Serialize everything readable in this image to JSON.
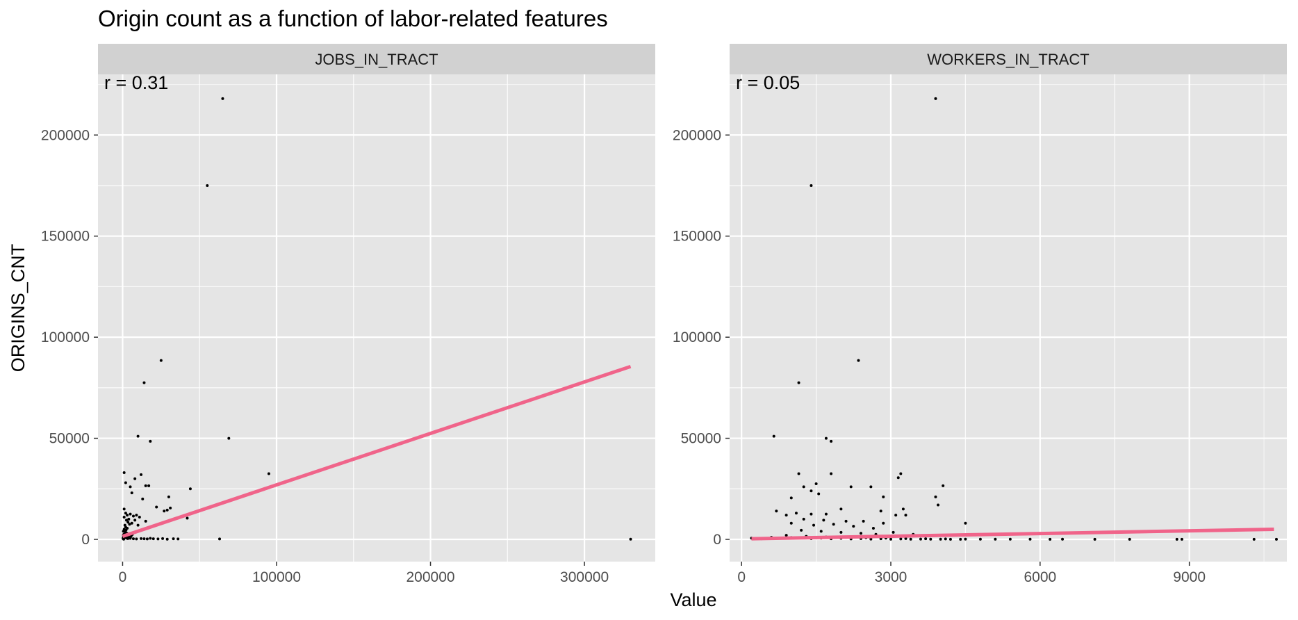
{
  "chart_data": {
    "type": "scatter",
    "title": "Origin count as a function of labor-related features",
    "xlabel": "Value",
    "ylabel": "ORIGINS_CNT",
    "grid": true,
    "legend": "none",
    "colors": {
      "panel_bg": "#e5e5e5",
      "strip_bg": "#d1d1d1",
      "grid": "#ffffff",
      "points": "#000000",
      "fit_line": "#f0648a"
    },
    "panels": [
      {
        "strip": "JOBS_IN_TRACT",
        "annotation": "r = 0.31",
        "xlim": [
          -16000,
          346000
        ],
        "ylim": [
          -11000,
          230000
        ],
        "x_ticks": [
          0,
          100000,
          200000,
          300000
        ],
        "x_tick_labels": [
          "0",
          "100000",
          "200000",
          "300000"
        ],
        "y_ticks": [
          0,
          50000,
          100000,
          150000,
          200000
        ],
        "y_tick_labels": [
          "0",
          "50000",
          "100000",
          "150000",
          "200000"
        ],
        "fit_line": [
          [
            0,
            1500
          ],
          [
            330000,
            85500
          ]
        ],
        "points": [
          [
            65000,
            218000
          ],
          [
            55000,
            175000
          ],
          [
            25000,
            88500
          ],
          [
            14000,
            77500
          ],
          [
            10000,
            51000
          ],
          [
            18000,
            48500
          ],
          [
            69000,
            50000
          ],
          [
            95000,
            32500
          ],
          [
            1000,
            33000
          ],
          [
            2000,
            28000
          ],
          [
            5000,
            26000
          ],
          [
            8000,
            30000
          ],
          [
            12000,
            32000
          ],
          [
            15000,
            26500
          ],
          [
            17000,
            26500
          ],
          [
            44000,
            25000
          ],
          [
            6000,
            23000
          ],
          [
            30000,
            21000
          ],
          [
            13000,
            20000
          ],
          [
            22000,
            16000
          ],
          [
            31000,
            15500
          ],
          [
            27000,
            14000
          ],
          [
            29000,
            14500
          ],
          [
            42000,
            10500
          ],
          [
            1000,
            15000
          ],
          [
            2000,
            13000
          ],
          [
            3000,
            12000
          ],
          [
            5000,
            12500
          ],
          [
            7000,
            11500
          ],
          [
            9000,
            12000
          ],
          [
            11000,
            11000
          ],
          [
            4000,
            10000
          ],
          [
            8000,
            9500
          ],
          [
            6000,
            8000
          ],
          [
            10000,
            7000
          ],
          [
            15000,
            9000
          ],
          [
            1000,
            11000
          ],
          [
            2500,
            9500
          ],
          [
            3500,
            8500
          ],
          [
            4500,
            7500
          ],
          [
            1500,
            7000
          ],
          [
            2000,
            6000
          ],
          [
            3000,
            5500
          ],
          [
            1000,
            5000
          ],
          [
            2200,
            4500
          ],
          [
            500,
            4000
          ],
          [
            1800,
            3500
          ],
          [
            2800,
            3000
          ],
          [
            800,
            2500
          ],
          [
            1200,
            2000
          ],
          [
            600,
            1500
          ],
          [
            900,
            1000
          ],
          [
            1600,
            800
          ],
          [
            2600,
            600
          ],
          [
            3400,
            400
          ],
          [
            400,
            300
          ],
          [
            5000,
            500
          ],
          [
            7000,
            300
          ],
          [
            9000,
            200
          ],
          [
            12000,
            400
          ],
          [
            14000,
            300
          ],
          [
            16000,
            200
          ],
          [
            18000,
            500
          ],
          [
            20000,
            300
          ],
          [
            23000,
            200
          ],
          [
            26000,
            400
          ],
          [
            29000,
            100
          ],
          [
            33000,
            300
          ],
          [
            36000,
            200
          ],
          [
            63000,
            200
          ],
          [
            330000,
            100
          ],
          [
            500,
            2200
          ],
          [
            1300,
            2600
          ],
          [
            2100,
            1700
          ],
          [
            3700,
            1300
          ],
          [
            4400,
            2000
          ],
          [
            5500,
            1400
          ],
          [
            6300,
            2400
          ],
          [
            300,
            600
          ],
          [
            700,
            100
          ]
        ]
      },
      {
        "strip": "WORKERS_IN_TRACT",
        "annotation": "r = 0.05",
        "xlim": [
          -240,
          10960
        ],
        "ylim": [
          -11000,
          230000
        ],
        "x_ticks": [
          0,
          3000,
          6000,
          9000
        ],
        "x_tick_labels": [
          "0",
          "3000",
          "6000",
          "9000"
        ],
        "y_ticks": [
          0,
          50000,
          100000,
          150000,
          200000
        ],
        "y_tick_labels": [
          "0",
          "50000",
          "100000",
          "150000",
          "200000"
        ],
        "fit_line": [
          [
            200,
            300
          ],
          [
            10700,
            5000
          ]
        ],
        "points": [
          [
            3900,
            218000
          ],
          [
            1400,
            175000
          ],
          [
            2350,
            88500
          ],
          [
            1150,
            77500
          ],
          [
            650,
            51000
          ],
          [
            1700,
            50000
          ],
          [
            1800,
            48500
          ],
          [
            1150,
            32500
          ],
          [
            1800,
            32500
          ],
          [
            3200,
            32500
          ],
          [
            3150,
            30500
          ],
          [
            4050,
            26500
          ],
          [
            1250,
            26000
          ],
          [
            1500,
            27500
          ],
          [
            2200,
            26000
          ],
          [
            2600,
            26000
          ],
          [
            1400,
            24000
          ],
          [
            1550,
            22500
          ],
          [
            2850,
            21000
          ],
          [
            3900,
            21000
          ],
          [
            1000,
            20500
          ],
          [
            3950,
            17000
          ],
          [
            3250,
            15000
          ],
          [
            2000,
            15000
          ],
          [
            1100,
            13000
          ],
          [
            1400,
            12500
          ],
          [
            1700,
            12500
          ],
          [
            2800,
            14000
          ],
          [
            3100,
            12000
          ],
          [
            3300,
            12000
          ],
          [
            4500,
            8000
          ],
          [
            700,
            14000
          ],
          [
            900,
            12000
          ],
          [
            1250,
            10000
          ],
          [
            1650,
            9500
          ],
          [
            2100,
            9000
          ],
          [
            2450,
            9000
          ],
          [
            2850,
            8000
          ],
          [
            1000,
            8000
          ],
          [
            1450,
            7000
          ],
          [
            1850,
            7500
          ],
          [
            2250,
            6500
          ],
          [
            2650,
            5500
          ],
          [
            3050,
            3500
          ],
          [
            3450,
            2500
          ],
          [
            1200,
            4500
          ],
          [
            1600,
            4000
          ],
          [
            2000,
            3500
          ],
          [
            2400,
            3000
          ],
          [
            2700,
            2500
          ],
          [
            900,
            2000
          ],
          [
            1300,
            1500
          ],
          [
            1700,
            1200
          ],
          [
            2100,
            1000
          ],
          [
            2500,
            800
          ],
          [
            2900,
            600
          ],
          [
            3300,
            400
          ],
          [
            3700,
            300
          ],
          [
            4100,
            200
          ],
          [
            4500,
            150
          ],
          [
            4800,
            100
          ],
          [
            5100,
            100
          ],
          [
            5400,
            80
          ],
          [
            5800,
            100
          ],
          [
            6200,
            60
          ],
          [
            6450,
            80
          ],
          [
            7100,
            50
          ],
          [
            7800,
            50
          ],
          [
            8750,
            40
          ],
          [
            8850,
            40
          ],
          [
            10300,
            30
          ],
          [
            10750,
            30
          ],
          [
            200,
            600
          ],
          [
            400,
            300
          ],
          [
            600,
            1000
          ],
          [
            800,
            500
          ],
          [
            1000,
            900
          ],
          [
            1200,
            700
          ],
          [
            1400,
            400
          ],
          [
            1600,
            600
          ],
          [
            1800,
            300
          ],
          [
            2000,
            500
          ],
          [
            2200,
            200
          ],
          [
            2400,
            400
          ],
          [
            2600,
            150
          ],
          [
            2800,
            300
          ],
          [
            3000,
            100
          ],
          [
            3200,
            200
          ],
          [
            3400,
            100
          ],
          [
            3600,
            150
          ],
          [
            3800,
            80
          ],
          [
            4000,
            100
          ],
          [
            4200,
            60
          ],
          [
            4400,
            40
          ]
        ]
      }
    ]
  }
}
